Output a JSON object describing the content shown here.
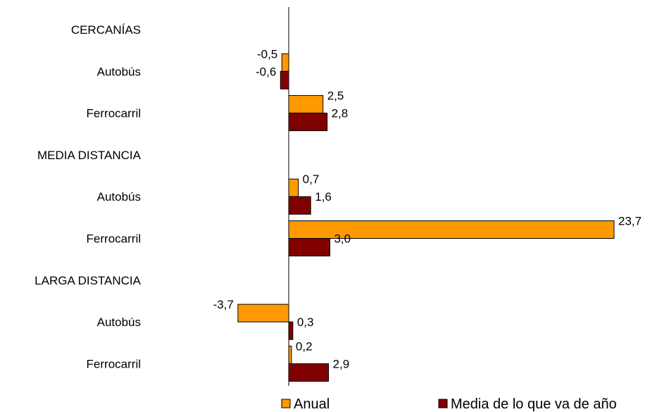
{
  "chart_data": {
    "type": "bar",
    "orientation": "horizontal",
    "categories": [
      "CERCANÍAS",
      "Autobús",
      "Ferrocarril",
      "MEDIA DISTANCIA",
      "Autobús",
      "Ferrocarril",
      "LARGA DISTANCIA",
      "Autobús",
      "Ferrocarril"
    ],
    "series": [
      {
        "name": "Anual",
        "color": "#FF9900",
        "values": [
          null,
          -0.5,
          2.5,
          null,
          0.7,
          23.7,
          null,
          -3.7,
          0.2
        ],
        "labels": [
          "",
          "-0,5",
          "2,5",
          "",
          "0,7",
          "23,7",
          "",
          "-3,7",
          "0,2"
        ]
      },
      {
        "name": "Media de lo que va de año",
        "color": "#800000",
        "values": [
          null,
          -0.6,
          2.8,
          null,
          1.6,
          3.0,
          null,
          0.3,
          2.9
        ],
        "labels": [
          "",
          "-0,6",
          "2,8",
          "",
          "1,6",
          "3,0",
          "",
          "0,3",
          "2,9"
        ]
      }
    ],
    "xlim": [
      -6.0,
      24.0
    ],
    "grid": false,
    "legend_position": "bottom"
  }
}
